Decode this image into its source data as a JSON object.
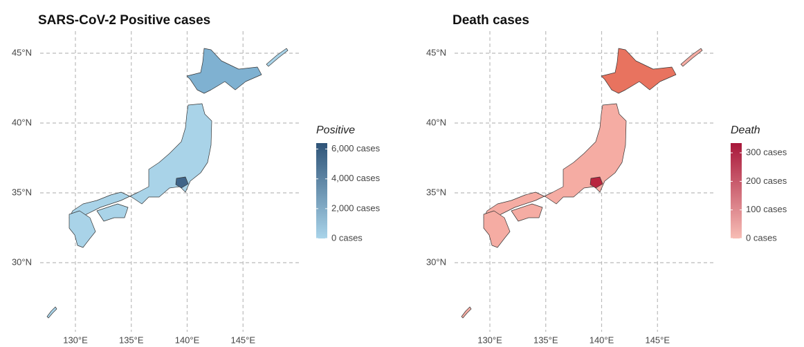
{
  "maps": [
    {
      "title": "SARS-CoV-2 Positive cases",
      "lat_ticks": [
        {
          "value": 30,
          "label": "30°N"
        },
        {
          "value": 35,
          "label": "35°N"
        },
        {
          "value": 40,
          "label": "40°N"
        },
        {
          "value": 45,
          "label": "45°N"
        }
      ],
      "lon_ticks": [
        {
          "value": 130,
          "label": "130°E"
        },
        {
          "value": 135,
          "label": "135°E"
        },
        {
          "value": 140,
          "label": "140°E"
        },
        {
          "value": 145,
          "label": "145°E"
        }
      ],
      "legend": {
        "title": "Positive",
        "colors": [
          "#a9d4ea",
          "#2f5478"
        ],
        "limits": [
          0,
          6400
        ],
        "ticks": [
          {
            "value": 0,
            "label": "0 cases"
          },
          {
            "value": 2000,
            "label": "2,000 cases"
          },
          {
            "value": 4000,
            "label": "4,000 cases"
          },
          {
            "value": 6000,
            "label": "6,000 cases"
          }
        ]
      },
      "fills": {
        "base": "#a9d3e8",
        "hokkaido": "#7fb1d1",
        "tokyo": "#3f6488"
      }
    },
    {
      "title": "Death cases",
      "lat_ticks": [
        {
          "value": 30,
          "label": "30°N"
        },
        {
          "value": 35,
          "label": "35°N"
        },
        {
          "value": 40,
          "label": "40°N"
        },
        {
          "value": 45,
          "label": "45°N"
        }
      ],
      "lon_ticks": [
        {
          "value": 130,
          "label": "130°E"
        },
        {
          "value": 135,
          "label": "135°E"
        },
        {
          "value": 140,
          "label": "140°E"
        },
        {
          "value": 145,
          "label": "145°E"
        }
      ],
      "legend": {
        "title": "Death",
        "colors": [
          "#f7bdb5",
          "#a8173a"
        ],
        "limits": [
          0,
          334
        ],
        "ticks": [
          {
            "value": 0,
            "label": "0 cases"
          },
          {
            "value": 100,
            "label": "100 cases"
          },
          {
            "value": 200,
            "label": "200 cases"
          },
          {
            "value": 300,
            "label": "300 cases"
          }
        ]
      },
      "fills": {
        "base": "#f5aca3",
        "hokkaido": "#e8735f",
        "tokyo": "#b8253e"
      }
    }
  ]
}
